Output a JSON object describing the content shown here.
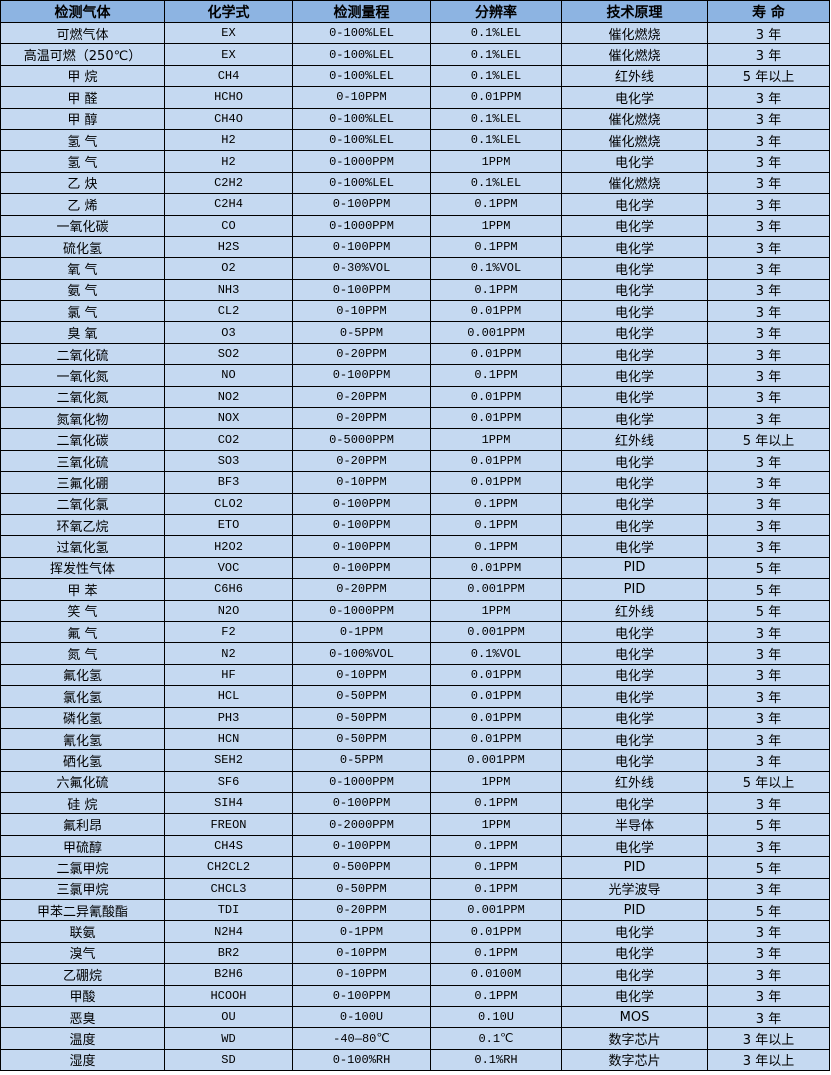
{
  "table": {
    "headers": [
      "检测气体",
      "化学式",
      "检测量程",
      "分辨率",
      "技术原理",
      "寿 命"
    ],
    "rows": [
      [
        "可燃气体",
        "EX",
        "0-100%LEL",
        "0.1%LEL",
        "催化燃烧",
        "3 年"
      ],
      [
        "高温可燃（250℃）",
        "EX",
        "0-100%LEL",
        "0.1%LEL",
        "催化燃烧",
        "3 年"
      ],
      [
        "甲 烷",
        "CH4",
        "0-100%LEL",
        "0.1%LEL",
        "红外线",
        "5 年以上"
      ],
      [
        "甲 醛",
        "HCHO",
        "0-10PPM",
        "0.01PPM",
        "电化学",
        "3 年"
      ],
      [
        "甲 醇",
        "CH4O",
        "0-100%LEL",
        "0.1%LEL",
        "催化燃烧",
        "3 年"
      ],
      [
        "氢 气",
        "H2",
        "0-100%LEL",
        "0.1%LEL",
        "催化燃烧",
        "3 年"
      ],
      [
        "氢 气",
        "H2",
        "0-1000PPM",
        "1PPM",
        "电化学",
        "3 年"
      ],
      [
        "乙 炔",
        "C2H2",
        "0-100%LEL",
        "0.1%LEL",
        "催化燃烧",
        "3 年"
      ],
      [
        "乙 烯",
        "C2H4",
        "0-100PPM",
        "0.1PPM",
        "电化学",
        "3 年"
      ],
      [
        "一氧化碳",
        "CO",
        "0-1000PPM",
        "1PPM",
        "电化学",
        "3 年"
      ],
      [
        "硫化氢",
        "H2S",
        "0-100PPM",
        "0.1PPM",
        "电化学",
        "3 年"
      ],
      [
        "氧 气",
        "O2",
        "0-30%VOL",
        "0.1%VOL",
        "电化学",
        "3 年"
      ],
      [
        "氨 气",
        "NH3",
        "0-100PPM",
        "0.1PPM",
        "电化学",
        "3 年"
      ],
      [
        "氯 气",
        "CL2",
        "0-10PPM",
        "0.01PPM",
        "电化学",
        "3 年"
      ],
      [
        "臭 氧",
        "O3",
        "0-5PPM",
        "0.001PPM",
        "电化学",
        "3 年"
      ],
      [
        "二氧化硫",
        "SO2",
        "0-20PPM",
        "0.01PPM",
        "电化学",
        "3 年"
      ],
      [
        "一氧化氮",
        "NO",
        "0-100PPM",
        "0.1PPM",
        "电化学",
        "3 年"
      ],
      [
        "二氧化氮",
        "NO2",
        "0-20PPM",
        "0.01PPM",
        "电化学",
        "3 年"
      ],
      [
        "氮氧化物",
        "NOX",
        "0-20PPM",
        "0.01PPM",
        "电化学",
        "3 年"
      ],
      [
        "二氧化碳",
        "CO2",
        "0-5000PPM",
        "1PPM",
        "红外线",
        "5 年以上"
      ],
      [
        "三氧化硫",
        "SO3",
        "0-20PPM",
        "0.01PPM",
        "电化学",
        "3 年"
      ],
      [
        "三氟化硼",
        "BF3",
        "0-10PPM",
        "0.01PPM",
        "电化学",
        "3 年"
      ],
      [
        "二氧化氯",
        "CLO2",
        "0-100PPM",
        "0.1PPM",
        "电化学",
        "3 年"
      ],
      [
        "环氧乙烷",
        "ETO",
        "0-100PPM",
        "0.1PPM",
        "电化学",
        "3 年"
      ],
      [
        "过氧化氢",
        "H2O2",
        "0-100PPM",
        "0.1PPM",
        "电化学",
        "3 年"
      ],
      [
        "挥发性气体",
        "VOC",
        "0-100PPM",
        "0.01PPM",
        "PID",
        "5 年"
      ],
      [
        "甲 苯",
        "C6H6",
        "0-20PPM",
        "0.001PPM",
        "PID",
        "5 年"
      ],
      [
        "笑 气",
        "N2O",
        "0-1000PPM",
        "1PPM",
        "红外线",
        "5 年"
      ],
      [
        "氟 气",
        "F2",
        "0-1PPM",
        "0.001PPM",
        "电化学",
        "3 年"
      ],
      [
        "氮 气",
        "N2",
        "0-100%VOL",
        "0.1%VOL",
        "电化学",
        "3 年"
      ],
      [
        "氟化氢",
        "HF",
        "0-10PPM",
        "0.01PPM",
        "电化学",
        "3 年"
      ],
      [
        "氯化氢",
        "HCL",
        "0-50PPM",
        "0.01PPM",
        "电化学",
        "3 年"
      ],
      [
        "磷化氢",
        "PH3",
        "0-50PPM",
        "0.01PPM",
        "电化学",
        "3 年"
      ],
      [
        "氰化氢",
        "HCN",
        "0-50PPM",
        "0.01PPM",
        "电化学",
        "3 年"
      ],
      [
        "硒化氢",
        "SEH2",
        "0-5PPM",
        "0.001PPM",
        "电化学",
        "3 年"
      ],
      [
        "六氟化硫",
        "SF6",
        "0-1000PPM",
        "1PPM",
        "红外线",
        "5 年以上"
      ],
      [
        "硅 烷",
        "SIH4",
        "0-100PPM",
        "0.1PPM",
        "电化学",
        "3 年"
      ],
      [
        "氟利昂",
        "FREON",
        "0-2000PPM",
        "1PPM",
        "半导体",
        "5 年"
      ],
      [
        "甲硫醇",
        "CH4S",
        "0-100PPM",
        "0.1PPM",
        "电化学",
        "3 年"
      ],
      [
        "二氯甲烷",
        "CH2CL2",
        "0-500PPM",
        "0.1PPM",
        "PID",
        "5 年"
      ],
      [
        "三氯甲烷",
        "CHCL3",
        "0-50PPM",
        "0.1PPM",
        "光学波导",
        "3 年"
      ],
      [
        "甲苯二异氰酸酯",
        "TDI",
        "0-20PPM",
        "0.001PPM",
        "PID",
        "5 年"
      ],
      [
        "联氨",
        "N2H4",
        "0-1PPM",
        "0.01PPM",
        "电化学",
        "3 年"
      ],
      [
        "溴气",
        "BR2",
        "0-10PPM",
        "0.1PPM",
        "电化学",
        "3 年"
      ],
      [
        "乙硼烷",
        "B2H6",
        "0-10PPM",
        "0.0100M",
        "电化学",
        "3 年"
      ],
      [
        "甲酸",
        "HCOOH",
        "0-100PPM",
        "0.1PPM",
        "电化学",
        "3 年"
      ],
      [
        "恶臭",
        "OU",
        "0-100U",
        "0.10U",
        "MOS",
        "3 年"
      ],
      [
        "温度",
        "WD",
        "-40—80℃",
        "0.1℃",
        "数字芯片",
        "3 年以上"
      ],
      [
        "湿度",
        "SD",
        "0-100%RH",
        "0.1%RH",
        "数字芯片",
        "3 年以上"
      ]
    ]
  },
  "colors": {
    "header_bg": "#8db4e2",
    "cell_bg": "#c5d9f1",
    "border": "#000000"
  }
}
